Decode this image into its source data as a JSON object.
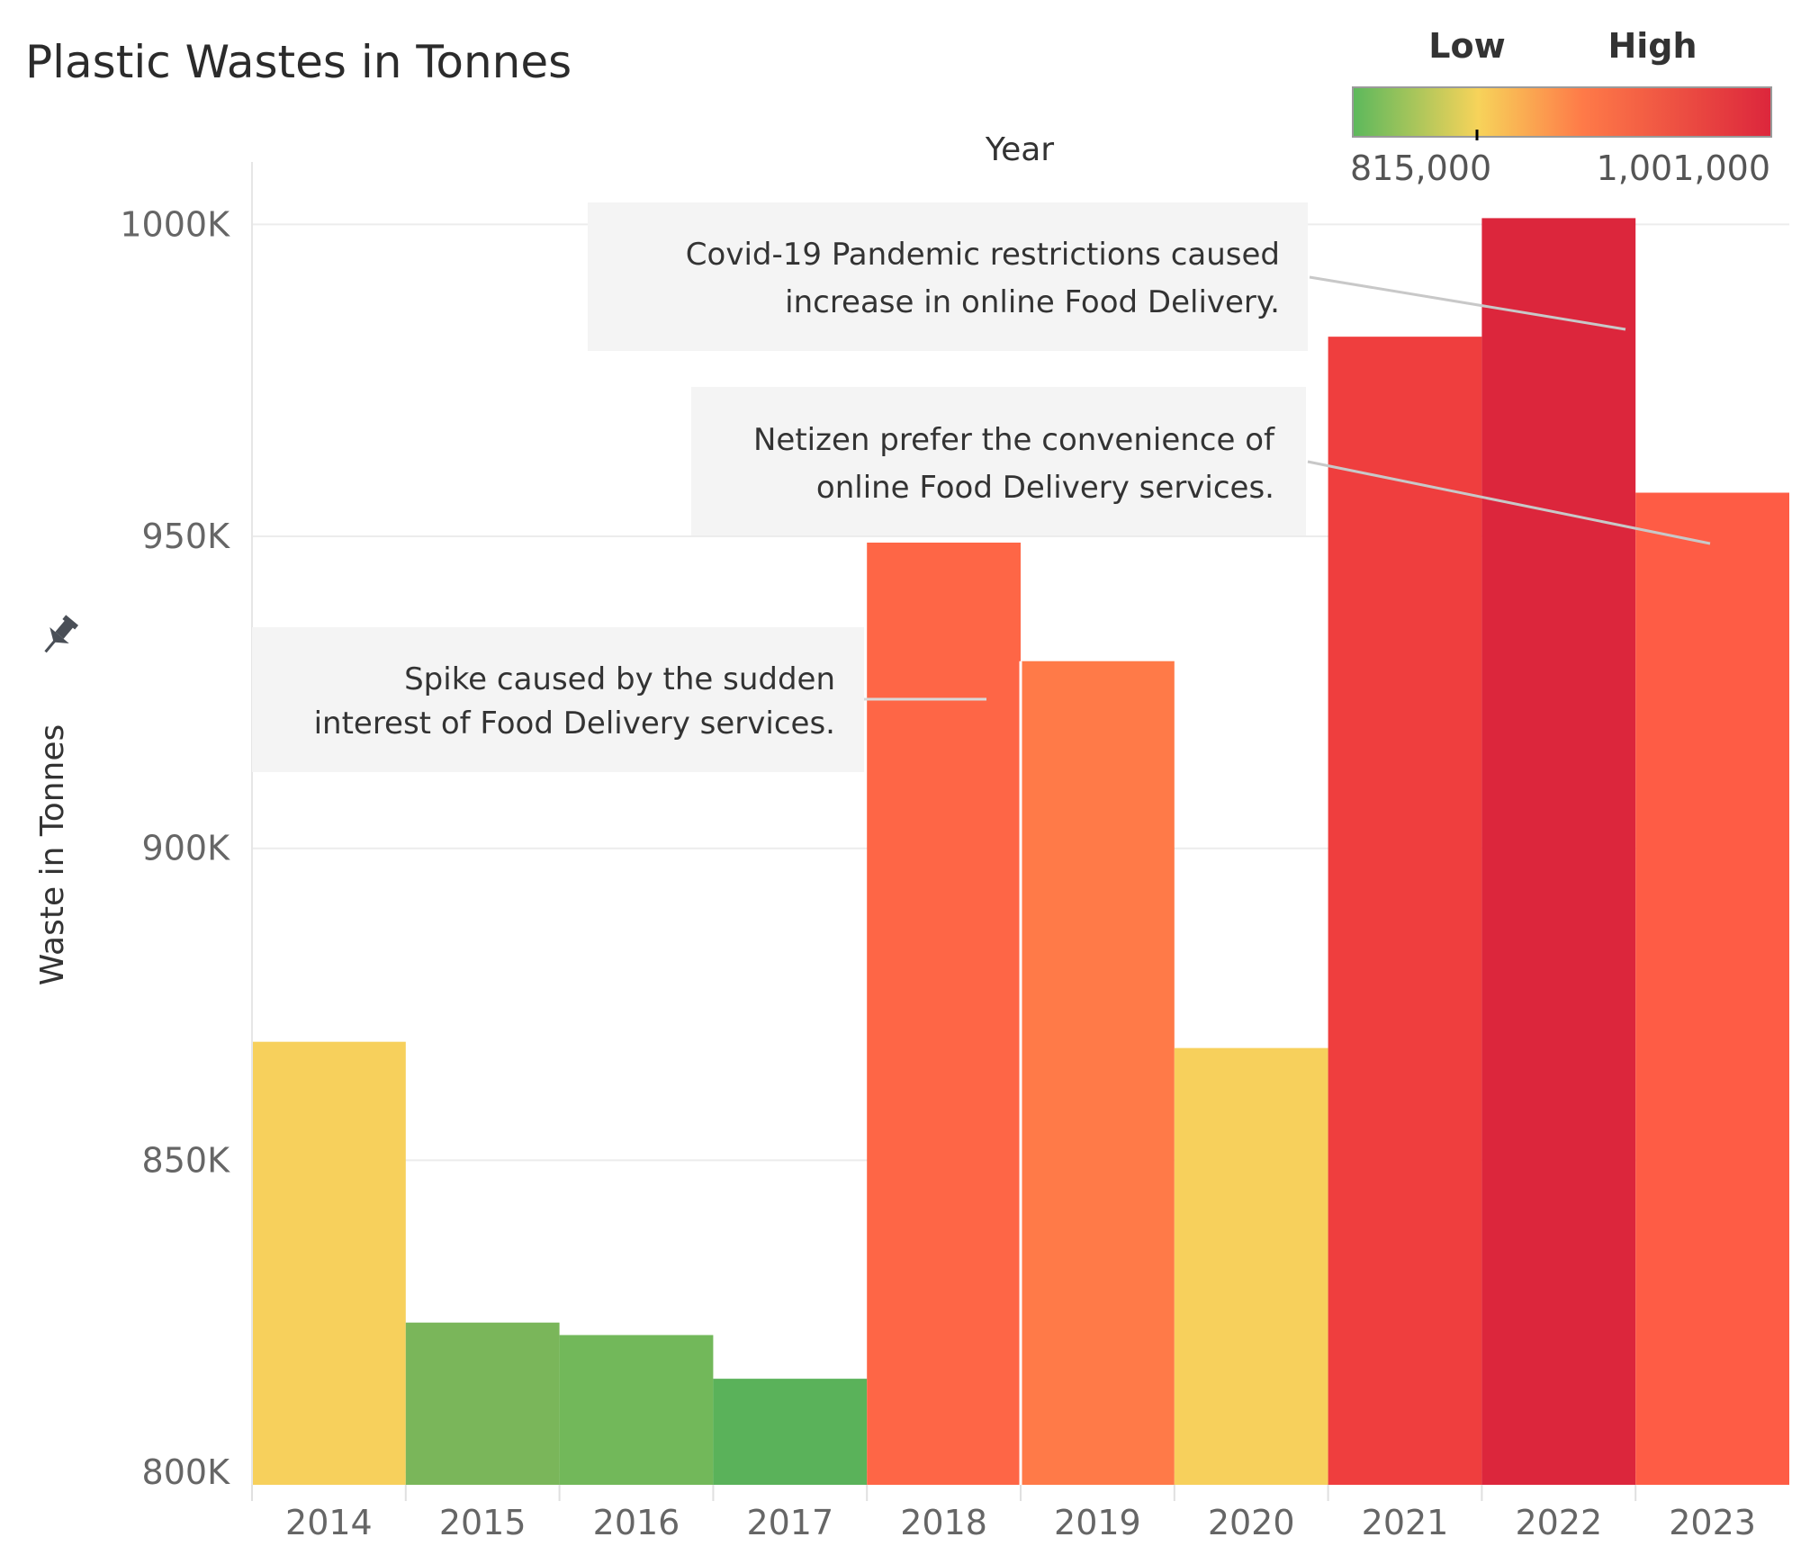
{
  "chart_data": {
    "type": "bar",
    "title": "Plastic Wastes in Tonnes",
    "xlabel": "Year",
    "ylabel": "Waste in Tonnes",
    "ylim": [
      798000,
      1010000
    ],
    "yticks": [
      800000,
      850000,
      900000,
      950000,
      1000000
    ],
    "ytick_labels": [
      "800K",
      "850K",
      "900K",
      "950K",
      "1000K"
    ],
    "grid": true,
    "categories": [
      "2014",
      "2015",
      "2016",
      "2017",
      "2018",
      "2019",
      "2020",
      "2021",
      "2022",
      "2023"
    ],
    "values": [
      869000,
      824000,
      822000,
      815000,
      949000,
      930000,
      868000,
      982000,
      1001000,
      957000
    ],
    "colors": [
      "#f7d05c",
      "#7ab65a",
      "#72b85a",
      "#5ab25a",
      "#fe6646",
      "#ff7a48",
      "#f7d05c",
      "#ef3e3e",
      "#dc263c",
      "#fe5c45"
    ],
    "legend": {
      "position": "top-right",
      "low_label": "Low",
      "high_label": "High",
      "min_label": "815,000",
      "max_label": "1,001,000",
      "gradient": [
        "#5cb85c",
        "#f7d35a",
        "#fe7a48",
        "#dc263c"
      ]
    },
    "annotations": [
      {
        "lines": [
          "Covid-19 Pandemic restrictions caused",
          "increase in online Food Delivery."
        ],
        "target_year": "2022"
      },
      {
        "lines": [
          "Netizen prefer the convenience of",
          "online Food Delivery services."
        ],
        "target_year": "2023"
      },
      {
        "lines": [
          "Spike caused by the sudden",
          "interest of Food Delivery services."
        ],
        "target_year": "2018"
      }
    ]
  }
}
